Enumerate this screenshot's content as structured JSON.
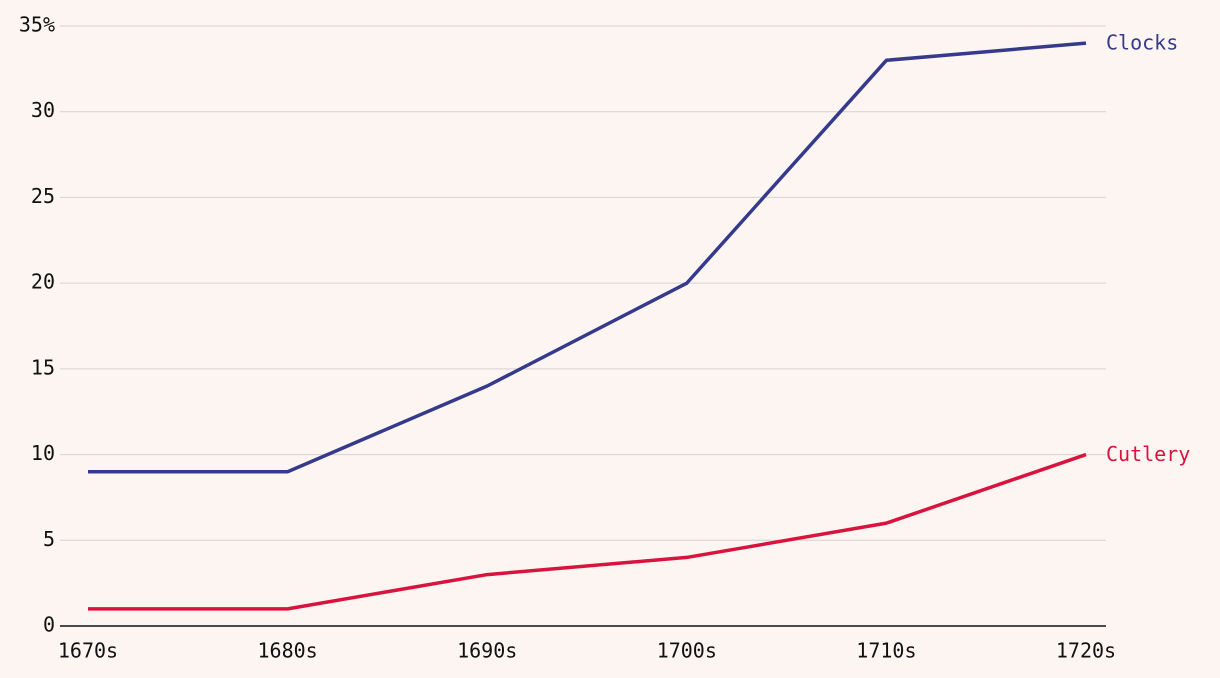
{
  "chart_data": {
    "type": "line",
    "categories": [
      "1670s",
      "1680s",
      "1690s",
      "1700s",
      "1710s",
      "1720s"
    ],
    "series": [
      {
        "name": "Clocks",
        "color": "#363a8c",
        "values": [
          9,
          9,
          14,
          20,
          33,
          34
        ]
      },
      {
        "name": "Cutlery",
        "color": "#d8143e",
        "values": [
          1,
          1,
          3,
          4,
          6,
          10
        ]
      }
    ],
    "ylim": [
      0,
      35
    ],
    "yticks": [
      0,
      5,
      10,
      15,
      20,
      25,
      30,
      {
        "value": 35,
        "label": "35%"
      }
    ],
    "grid": true
  }
}
